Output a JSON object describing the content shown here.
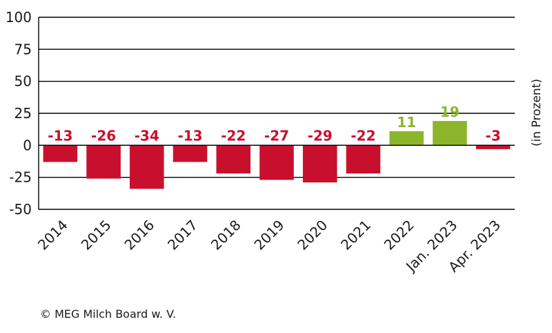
{
  "chart_data": {
    "type": "bar",
    "categories": [
      "2014",
      "2015",
      "2016",
      "2017",
      "2018",
      "2019",
      "2020",
      "2021",
      "2022",
      "Jan. 2023",
      "Apr. 2023"
    ],
    "values": [
      -13,
      -26,
      -34,
      -13,
      -22,
      -27,
      -29,
      -22,
      11,
      19,
      -3
    ],
    "data_labels": [
      "-13",
      "-26",
      "-34",
      "-13",
      "-22",
      "-27",
      "-29",
      "-22",
      "11",
      "19",
      "-3"
    ],
    "xlabel": "",
    "ylabel": "(in Prozent)",
    "ylim": [
      -50,
      100
    ],
    "yticks": [
      100,
      75,
      50,
      25,
      0,
      -25,
      -50
    ],
    "ytick_labels": [
      "100",
      "75",
      "50",
      "25",
      "0",
      "-25",
      "-50"
    ],
    "grid": true,
    "colors": {
      "negative": "#c8102e",
      "positive": "#8db52b"
    }
  },
  "footer": {
    "source": "© MEG Milch Board w. V."
  }
}
